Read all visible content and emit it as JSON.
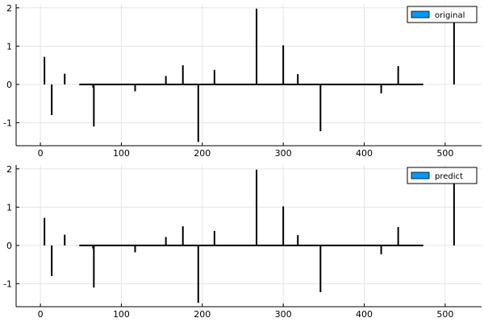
{
  "colors": {
    "stem": "#000000",
    "legend_swatch": "#009af9",
    "grid": "#e5e5e5",
    "axis": "#000000"
  },
  "chart_data": [
    {
      "type": "stem",
      "legend": "original",
      "legend_placement": "top-right",
      "grid": true,
      "xlim": [
        -30,
        545
      ],
      "ylim": [
        -1.6,
        2.1
      ],
      "xticks": [
        0,
        100,
        200,
        300,
        400,
        500
      ],
      "yticks": [
        -1,
        0,
        1,
        2
      ],
      "points": [
        {
          "x": 5,
          "y": 0.72
        },
        {
          "x": 14,
          "y": -0.8
        },
        {
          "x": 30,
          "y": 0.28
        },
        {
          "x": 65,
          "y": -0.08
        },
        {
          "x": 66,
          "y": -1.1
        },
        {
          "x": 117,
          "y": -0.18
        },
        {
          "x": 155,
          "y": 0.22
        },
        {
          "x": 176,
          "y": 0.5
        },
        {
          "x": 195,
          "y": -1.5
        },
        {
          "x": 215,
          "y": 0.38
        },
        {
          "x": 267,
          "y": 1.98
        },
        {
          "x": 300,
          "y": 1.02
        },
        {
          "x": 318,
          "y": 0.27
        },
        {
          "x": 346,
          "y": -1.22
        },
        {
          "x": 421,
          "y": -0.23
        },
        {
          "x": 442,
          "y": 0.48
        },
        {
          "x": 511,
          "y": 1.63
        }
      ],
      "baseline_x": [
        48,
        473
      ]
    },
    {
      "type": "stem",
      "legend": "predict",
      "legend_placement": "top-right",
      "grid": true,
      "xlim": [
        -30,
        545
      ],
      "ylim": [
        -1.6,
        2.1
      ],
      "xticks": [
        0,
        100,
        200,
        300,
        400,
        500
      ],
      "yticks": [
        -1,
        0,
        1,
        2
      ],
      "points": [
        {
          "x": 5,
          "y": 0.72
        },
        {
          "x": 14,
          "y": -0.8
        },
        {
          "x": 30,
          "y": 0.28
        },
        {
          "x": 65,
          "y": -0.08
        },
        {
          "x": 66,
          "y": -1.1
        },
        {
          "x": 117,
          "y": -0.18
        },
        {
          "x": 155,
          "y": 0.22
        },
        {
          "x": 176,
          "y": 0.5
        },
        {
          "x": 195,
          "y": -1.5
        },
        {
          "x": 215,
          "y": 0.38
        },
        {
          "x": 267,
          "y": 1.98
        },
        {
          "x": 300,
          "y": 1.02
        },
        {
          "x": 318,
          "y": 0.27
        },
        {
          "x": 346,
          "y": -1.22
        },
        {
          "x": 421,
          "y": -0.23
        },
        {
          "x": 442,
          "y": 0.48
        },
        {
          "x": 511,
          "y": 1.63
        }
      ],
      "baseline_x": [
        48,
        473
      ]
    }
  ]
}
